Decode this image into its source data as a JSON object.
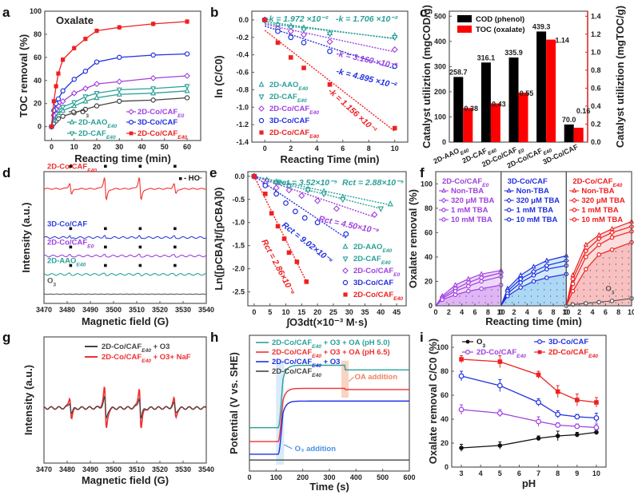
{
  "figure_title": "",
  "chart_data": [
    {
      "panel": "a",
      "type": "line",
      "title": "Oxalate",
      "xlabel": "Reacting time (min)",
      "ylabel": "TOC removal (%)",
      "xlim": [
        -3,
        66
      ],
      "ylim": [
        -12,
        100
      ],
      "xticks": [
        0,
        10,
        20,
        30,
        40,
        50,
        60
      ],
      "yticks": [
        0,
        20,
        40,
        60,
        80,
        100
      ],
      "x": [
        0,
        1,
        2,
        3,
        5,
        10,
        15,
        20,
        30,
        45,
        60
      ],
      "legend": "bottom",
      "series": [
        {
          "name": "O3",
          "sub": "3",
          "color": "#444444",
          "marker": "circle-open",
          "values": [
            0,
            3,
            5,
            7,
            9,
            12,
            15,
            18,
            22,
            23,
            25
          ]
        },
        {
          "name": "2D-AAO",
          "sub": "E40",
          "color": "#2aa198",
          "marker": "triangle-open",
          "values": [
            0,
            6,
            9,
            12,
            14,
            18,
            22,
            25,
            28,
            29,
            31
          ]
        },
        {
          "name": "2D-CAF",
          "sub": "E40",
          "color": "#2aa198",
          "marker": "tri-down-open",
          "values": [
            0,
            8,
            11,
            14,
            17,
            21,
            26,
            29,
            32,
            33,
            35
          ]
        },
        {
          "name": "2D-Co/CAF",
          "sub": "E0",
          "color": "#a040e0",
          "marker": "diamond-open",
          "values": [
            0,
            10,
            15,
            18,
            22,
            29,
            33,
            37,
            39,
            42,
            44
          ]
        },
        {
          "name": "3D-Co/CAF",
          "sub": "",
          "color": "#2030e0",
          "marker": "circle-open",
          "values": [
            0,
            14,
            20,
            24,
            31,
            41,
            48,
            56,
            60,
            62,
            63
          ]
        },
        {
          "name": "2D-Co/CAF",
          "sub": "E40",
          "color": "#f02020",
          "marker": "square-filled",
          "values": [
            0,
            22,
            35,
            46,
            58,
            68,
            76,
            83,
            86,
            89,
            91
          ]
        }
      ]
    },
    {
      "panel": "b",
      "type": "scatter",
      "xlabel": "Reacting Time (min)",
      "ylabel": "ln (C/C0)",
      "xlim": [
        -1,
        11
      ],
      "ylim": [
        -1.4,
        0.1
      ],
      "xticks": [
        0,
        2,
        4,
        6,
        8,
        10
      ],
      "yticks": [
        0.0,
        -0.2,
        -0.4,
        -0.6,
        -0.8,
        -1.0,
        -1.2,
        -1.4
      ],
      "x": [
        0,
        1,
        2,
        3,
        5,
        10
      ],
      "legend": "bottom-left",
      "series": [
        {
          "name": "2D-AAO",
          "sub": "E40",
          "color": "#2aa198",
          "marker": "triangle-open",
          "values": [
            0,
            -0.05,
            -0.07,
            -0.09,
            -0.15,
            -0.18
          ],
          "fit": [
            -0.02,
            -0.0197
          ],
          "k_label": "-k = 1.972 ×10⁻²"
        },
        {
          "name": "2D-CAF",
          "sub": "E40",
          "color": "#2aa198",
          "marker": "tri-down-open",
          "values": [
            0,
            -0.06,
            -0.09,
            -0.11,
            -0.16,
            -0.2
          ],
          "fit": [
            -0.04,
            -0.01706
          ],
          "k_label": "-k = 1.706 ×10⁻²"
        },
        {
          "name": "2D-Co/CAF",
          "sub": "E40",
          "color": "#a040e0",
          "marker": "diamond-open",
          "values": [
            0,
            -0.1,
            -0.13,
            -0.17,
            -0.25,
            -0.34
          ],
          "fit": [
            -0.05,
            -0.0316
          ],
          "k_label": "-k = 3.160 ×10⁻²"
        },
        {
          "name": "3D-Co/CAF",
          "sub": "",
          "color": "#2030e0",
          "marker": "circle-open",
          "values": [
            0,
            -0.13,
            -0.2,
            -0.26,
            -0.36,
            -0.53
          ],
          "fit": [
            -0.07,
            -0.04895
          ],
          "k_label": "-k = 4.895 ×10⁻²"
        },
        {
          "name": "2D-Co/CAF",
          "sub": "E40",
          "color": "#f02020",
          "marker": "square-filled",
          "values": [
            0,
            -0.26,
            -0.43,
            -0.55,
            -0.74,
            -1.24
          ],
          "fit": [
            -0.12,
            -0.1156
          ],
          "k_label": "-k = 1.156 ×10⁻¹"
        }
      ]
    },
    {
      "panel": "c",
      "type": "bar",
      "ylabel": "Catalyst utiliztion (mgCOD/g)",
      "y2label": "Catalyst utiliztion (mgTOC/g)",
      "ylim": [
        0,
        520
      ],
      "y2lim": [
        0,
        1.456
      ],
      "yticks": [
        0,
        100,
        200,
        300,
        400,
        500
      ],
      "y2ticks": [
        0.0,
        0.2,
        0.4,
        0.6,
        0.8,
        1.0,
        1.2,
        1.4
      ],
      "categories": [
        "2D-AAO|E40",
        "2D-CAF|E40",
        "2D-Co/CAF|E0",
        "2D-Co/CAF|E40",
        "3D-Co/CAF|"
      ],
      "legend": "top-left",
      "series": [
        {
          "name": "COD (phenol)",
          "color": "#000000",
          "axis": "left",
          "values": [
            258.7,
            316.1,
            335.9,
            439.3,
            70.0
          ],
          "labels": [
            "258.7",
            "316.1",
            "335.9",
            "439.3",
            "70.0"
          ]
        },
        {
          "name": "TOC (oxalate)",
          "color": "#ff0000",
          "axis": "right",
          "values": [
            0.38,
            0.43,
            0.55,
            1.14,
            0.16
          ],
          "labels": [
            "0.38",
            "0.43",
            "0.55",
            "1.14",
            "0.16"
          ]
        }
      ]
    },
    {
      "panel": "d",
      "type": "line",
      "xlabel": "Magnetic field (G)",
      "ylabel": "Intensity (a.u.)",
      "xlim": [
        3470,
        3540
      ],
      "xticks": [
        3470,
        3480,
        3490,
        3500,
        3510,
        3520,
        3530,
        3540
      ],
      "peaks": [
        3481.5,
        3496.5,
        3511.5,
        3526.5
      ],
      "marker_legend": "■ - HO·",
      "series": [
        {
          "name": "2D-Co/CAF",
          "sub": "E40",
          "color": "#f03030",
          "amplitude": [
            0.5,
            1.0,
            1.0,
            0.45
          ],
          "offset": 0.87
        },
        {
          "name": "3D-Co/CAF",
          "sub": "",
          "color": "#3040e0",
          "amplitude": [
            0.15,
            0.15,
            0.12,
            0.1
          ],
          "offset": 0.5
        },
        {
          "name": "2D-Co/CAF",
          "sub": "E0",
          "color": "#a040e0",
          "amplitude": [
            0.08,
            0.08,
            0.08,
            0.07
          ],
          "offset": 0.36
        },
        {
          "name": "2D-AAO",
          "sub": "E40",
          "color": "#2aa198",
          "amplitude": [
            0.05,
            0.05,
            0.05,
            0.05
          ],
          "offset": 0.22
        },
        {
          "name": "O3",
          "sub": "3",
          "color": "#555555",
          "amplitude": [
            0,
            0,
            0,
            0
          ],
          "offset": 0.07
        }
      ]
    },
    {
      "panel": "e",
      "type": "scatter",
      "xlabel": "∫O3dt(×10⁻³ M·s)",
      "ylabel": "Ln([pCBA]t/[pCBA]0)",
      "xlim": [
        -2,
        48
      ],
      "ylim": [
        -2.8,
        0.1
      ],
      "xticks": [
        0,
        5,
        10,
        15,
        20,
        25,
        30,
        35,
        40,
        45
      ],
      "yticks": [
        0.0,
        -0.5,
        -1.0,
        -1.5,
        -2.0,
        -2.5
      ],
      "legend": "bottom-right",
      "series": [
        {
          "name": "2D-AAO",
          "sub": "E40",
          "color": "#2aa198",
          "marker": "triangle-open",
          "x": [
            0,
            4,
            7,
            11,
            17,
            22,
            28,
            43
          ],
          "values": [
            0,
            -0.08,
            -0.12,
            -0.2,
            -0.28,
            -0.33,
            -0.45,
            -0.6
          ],
          "slope": -0.0144,
          "rct_label": "Rct = 3.52×10⁻⁹"
        },
        {
          "name": "2D-CAF",
          "sub": "E40",
          "color": "#2aa198",
          "marker": "tri-down-open",
          "x": [
            0,
            4,
            7,
            11,
            17,
            22,
            28,
            40
          ],
          "values": [
            0,
            -0.1,
            -0.15,
            -0.22,
            -0.3,
            -0.38,
            -0.5,
            -0.7
          ],
          "slope": -0.0175,
          "rct_label": "Rct = 2.88×10⁻⁹"
        },
        {
          "name": "2D-Co/CAF",
          "sub": "E0",
          "color": "#a040e0",
          "marker": "diamond-open",
          "x": [
            0,
            3.5,
            7,
            11,
            15,
            20,
            26,
            38
          ],
          "values": [
            0,
            -0.15,
            -0.25,
            -0.3,
            -0.42,
            -0.53,
            -0.7,
            -0.83
          ],
          "slope": -0.0232,
          "rct_label": "Rct = 4.50×10⁻⁹"
        },
        {
          "name": "3D-Co/CAF",
          "sub": "",
          "color": "#2030e0",
          "marker": "circle-open",
          "x": [
            0,
            3.5,
            7,
            10,
            13,
            16,
            20,
            29
          ],
          "values": [
            0,
            -0.2,
            -0.38,
            -0.58,
            -0.76,
            -0.9,
            -1.0,
            -1.25
          ],
          "slope": -0.046,
          "rct_label": "Rct = 9.02×10⁻⁹"
        },
        {
          "name": "2D-Co/CAF",
          "sub": "E40",
          "color": "#f02020",
          "marker": "square-filled",
          "x": [
            0,
            3.5,
            5.5,
            7.5,
            9.5,
            11,
            13.5,
            16.5
          ],
          "values": [
            0,
            -0.38,
            -0.8,
            -1.08,
            -1.35,
            -1.65,
            -1.85,
            -2.28
          ],
          "slope": -0.138,
          "rct_label": "Rct = 2.86×10⁻⁸"
        }
      ]
    },
    {
      "panel": "f",
      "type": "area",
      "xlabel": "Reacting time (min)",
      "ylabel": "Oxalate removal (%)",
      "xlim": [
        0,
        10
      ],
      "ylim": [
        0,
        110
      ],
      "xticks": [
        0,
        2,
        4,
        6,
        8,
        10
      ],
      "yticks": [
        0,
        20,
        40,
        60,
        80,
        100
      ],
      "x": [
        0,
        1,
        3,
        5,
        7,
        10
      ],
      "legend_items": [
        "Non-TBA",
        "320 μM TBA",
        "1 mM TBA",
        "10 mM TBA"
      ],
      "subpanels": [
        {
          "name": "2D-Co/CAF",
          "sub": "E0",
          "color": "#a040e0",
          "fill": "#d9a8f5",
          "series": [
            [
              0,
              8,
              17,
              22,
              26,
              29
            ],
            [
              0,
              7,
              14,
              19,
              23,
              27
            ],
            [
              0,
              6,
              12,
              16,
              20,
              24
            ],
            [
              0,
              5,
              9,
              12,
              14,
              17
            ]
          ]
        },
        {
          "name": "3D-Co/CAF",
          "sub": "",
          "color": "#2030e0",
          "fill": "#9dd0f5",
          "series": [
            [
              0,
              14,
              25,
              32,
              37,
              41
            ],
            [
              0,
              12,
              22,
              28,
              33,
              37
            ],
            [
              0,
              10,
              19,
              25,
              30,
              33
            ],
            [
              0,
              8,
              15,
              20,
              23,
              26
            ]
          ]
        },
        {
          "name": "2D-Co/CAF",
          "sub": "E40",
          "color": "#f02020",
          "fill": "#f7b5b5",
          "series": [
            [
              0,
              25,
              50,
              58,
              63,
              69
            ],
            [
              0,
              22,
              45,
              55,
              60,
              65
            ],
            [
              0,
              18,
              40,
              50,
              56,
              61
            ],
            [
              0,
              12,
              30,
              42,
              46,
              52
            ]
          ],
          "o3_series": [
            0,
            1,
            2,
            3,
            4,
            6
          ],
          "o3_label": "O3"
        }
      ]
    },
    {
      "panel": "g",
      "type": "line",
      "xlabel": "Magnetic field (G)",
      "ylabel": "Intensity (a.u.)",
      "xlim": [
        3470,
        3540
      ],
      "xticks": [
        3470,
        3480,
        3490,
        3500,
        3510,
        3520,
        3530,
        3540
      ],
      "peaks": [
        3481.5,
        3496.5,
        3511.5,
        3526.5
      ],
      "legend": "top-right",
      "series": [
        {
          "name": "2D-Co/CAF",
          "sub": "E40",
          "suffix": " + O3",
          "color": "#444444",
          "amplitude": [
            0.25,
            0.5,
            0.5,
            0.22
          ]
        },
        {
          "name": "2D-Co/CAF",
          "sub": "E40",
          "suffix": " + O3+ NaF",
          "color": "#f03030",
          "amplitude": [
            0.5,
            1.0,
            1.0,
            0.45
          ]
        }
      ]
    },
    {
      "panel": "h",
      "type": "line",
      "xlabel": "Time (s)",
      "ylabel": "Potential (V vs. SHE)",
      "xlim": [
        0,
        600
      ],
      "xticks": [
        0,
        100,
        200,
        300,
        400,
        500,
        600
      ],
      "annotations": [
        {
          "text": "O3 addition",
          "x": 115,
          "color": "#4a90e2"
        },
        {
          "text": "OA addition",
          "x": 355,
          "color": "#f08060"
        }
      ],
      "legend": "top-left",
      "series": [
        {
          "name": "2D-Co/CAF",
          "sub": "E40",
          "suffix": " + O3 + OA (pH 5.0)",
          "color": "#2aa198",
          "before": 0.32,
          "after": 0.86,
          "after_oa": 0.82
        },
        {
          "name": "2D-Co/CAF",
          "sub": "E40",
          "suffix": " + O3 + OA (pH 6.5)",
          "color": "#f03030",
          "before": 0.2,
          "after": 0.66,
          "after_oa": 0.65
        },
        {
          "name": "2D-Co/CAF",
          "sub": "E40",
          "suffix": " + O3",
          "color": "#2030e0",
          "before": 0.09,
          "after": 0.55,
          "after_oa": 0.55
        },
        {
          "name": "2D-Co/CAF",
          "sub": "E40",
          "suffix": "",
          "color": "#444444",
          "before": 0.04,
          "after": 0.04,
          "after_oa": 0.04
        }
      ]
    },
    {
      "panel": "i",
      "type": "line",
      "xlabel": "pH",
      "ylabel": "Oxalate removal C/C0 (%)",
      "xlim": [
        2.5,
        10.5
      ],
      "ylim": [
        0,
        110
      ],
      "xticks": [
        3,
        4,
        5,
        6,
        7,
        8,
        9,
        10
      ],
      "yticks": [
        0,
        20,
        40,
        60,
        80,
        100
      ],
      "x": [
        3,
        5,
        7,
        8,
        9,
        10
      ],
      "legend": "top",
      "series": [
        {
          "name": "O3",
          "sub": "3",
          "color": "#111111",
          "marker": "circle-filled",
          "values": [
            16,
            18,
            24,
            26,
            27,
            29
          ],
          "err": [
            3,
            3,
            2,
            4,
            2,
            2
          ]
        },
        {
          "name": "3D-Co/CAF",
          "sub": "",
          "color": "#2030e0",
          "marker": "circle-open",
          "values": [
            76,
            68,
            54,
            44,
            42,
            41
          ],
          "err": [
            4,
            5,
            3,
            3,
            2,
            4
          ]
        },
        {
          "name": "2D-Co/CAF",
          "sub": "E40",
          "color": "#a040e0",
          "marker": "circle-open",
          "values": [
            48,
            45,
            38,
            35,
            34,
            33
          ],
          "err": [
            4,
            3,
            4,
            2,
            2,
            3
          ]
        },
        {
          "name": "2D-Co/CAF",
          "sub": "E40",
          "color": "#f02020",
          "marker": "square-filled",
          "values": [
            90,
            88,
            77,
            63,
            56,
            54
          ],
          "err": [
            3,
            5,
            3,
            5,
            5,
            4
          ]
        }
      ]
    }
  ],
  "panel_labels": [
    "a",
    "b",
    "c",
    "d",
    "e",
    "f",
    "g",
    "h",
    "i"
  ]
}
